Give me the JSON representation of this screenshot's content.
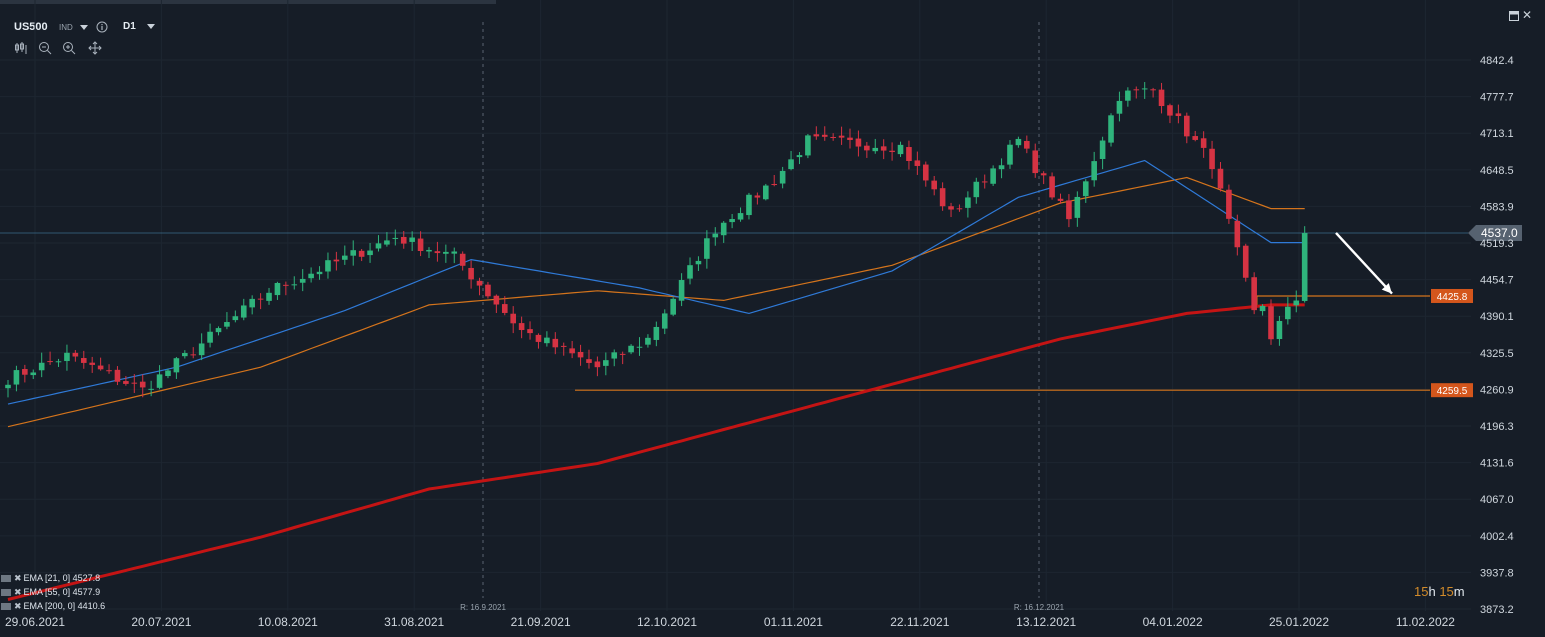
{
  "header": {
    "symbol": "US500",
    "instrument_type": "IND",
    "info_icon": "info-icon",
    "timeframe": "D1",
    "tools": [
      "candlestick-settings-icon",
      "zoom-out-icon",
      "zoom-in-icon",
      "crosshair-move-icon"
    ]
  },
  "window": {
    "maximize_icon": "maximize-icon",
    "close_label": "✕"
  },
  "indicators": [
    {
      "label": "EMA [21, 0] 4527.8",
      "color": "#2f7ad8"
    },
    {
      "label": "EMA [55, 0] 4577.9",
      "color": "#d4741c"
    },
    {
      "label": "EMA [200, 0] 4410.6",
      "color": "#c41414"
    }
  ],
  "countdown": {
    "hours": "15",
    "h": "h",
    "minutes": "15",
    "m": "m"
  },
  "chart_data": {
    "type": "candlestick",
    "symbol": "US500",
    "timeframe": "D1",
    "y_ticks": [
      4842.4,
      4777.7,
      4713.1,
      4648.5,
      4583.9,
      4519.3,
      4454.7,
      4390.1,
      4325.5,
      4260.9,
      4196.3,
      4131.6,
      4067.0,
      4002.4,
      3937.8,
      3873.2
    ],
    "ylim": [
      3873.2,
      4842.4
    ],
    "x_ticks": [
      "29.06.2021",
      "20.07.2021",
      "10.08.2021",
      "31.08.2021",
      "21.09.2021",
      "12.10.2021",
      "01.11.2021",
      "22.11.2021",
      "13.12.2021",
      "04.01.2022",
      "25.01.2022",
      "11.02.2022"
    ],
    "rollover_markers": [
      "R: 16.9.2021",
      "R: 16.12.2021"
    ],
    "current_price": 4537.0,
    "horizontal_levels": [
      {
        "label": "4425.8",
        "value": 4425.8,
        "color": "#d4741c"
      },
      {
        "label": "4259.5",
        "value": 4259.5,
        "color": "#d4741c"
      }
    ],
    "arrow": {
      "from_date": "26.01.2022",
      "from_value": 4537,
      "to_date": "07.02.2022",
      "to_value": 4430,
      "color": "#ffffff"
    },
    "ema_series": [
      {
        "name": "EMA [21, 0]",
        "color": "#2f7ad8"
      },
      {
        "name": "EMA [55, 0]",
        "color": "#d4741c"
      },
      {
        "name": "EMA [200, 0]",
        "color": "#c41414"
      }
    ],
    "candle_anchors": [
      {
        "date": "29.06.2021",
        "close": 4280
      },
      {
        "date": "08.07.2021",
        "close": 4320
      },
      {
        "date": "20.07.2021",
        "close": 4260
      },
      {
        "date": "10.08.2021",
        "close": 4435
      },
      {
        "date": "31.08.2021",
        "close": 4530
      },
      {
        "date": "09.09.2021",
        "close": 4495
      },
      {
        "date": "21.09.2021",
        "close": 4365
      },
      {
        "date": "04.10.2021",
        "close": 4300
      },
      {
        "date": "12.10.2021",
        "close": 4350
      },
      {
        "date": "21.10.2021",
        "close": 4545
      },
      {
        "date": "01.11.2021",
        "close": 4630
      },
      {
        "date": "05.11.2021",
        "close": 4700
      },
      {
        "date": "22.11.2021",
        "close": 4690
      },
      {
        "date": "30.11.2021",
        "close": 4570
      },
      {
        "date": "10.12.2021",
        "close": 4700
      },
      {
        "date": "20.12.2021",
        "close": 4560
      },
      {
        "date": "29.12.2021",
        "close": 4780
      },
      {
        "date": "04.01.2022",
        "close": 4790
      },
      {
        "date": "13.01.2022",
        "close": 4660
      },
      {
        "date": "21.01.2022",
        "close": 4395
      },
      {
        "date": "24.01.2022",
        "close": 4410
      },
      {
        "date": "25.01.2022",
        "close": 4355
      },
      {
        "date": "28.01.2022",
        "close": 4420
      },
      {
        "date": "31.01.2022",
        "close": 4510
      },
      {
        "date": "02.02.2022",
        "close": 4550
      },
      {
        "date": "03.02.2022",
        "close": 4537
      }
    ],
    "candle_count": 155,
    "ema21_anchors": [
      [
        0,
        4235
      ],
      [
        20,
        4300
      ],
      [
        40,
        4400
      ],
      [
        55,
        4490
      ],
      [
        75,
        4440
      ],
      [
        88,
        4395
      ],
      [
        105,
        4470
      ],
      [
        120,
        4600
      ],
      [
        135,
        4665
      ],
      [
        150,
        4520
      ]
    ],
    "ema55_anchors": [
      [
        0,
        4195
      ],
      [
        30,
        4300
      ],
      [
        50,
        4410
      ],
      [
        70,
        4435
      ],
      [
        85,
        4418
      ],
      [
        105,
        4480
      ],
      [
        125,
        4590
      ],
      [
        140,
        4635
      ],
      [
        150,
        4580
      ]
    ],
    "ema200_anchors": [
      [
        0,
        3890
      ],
      [
        30,
        4000
      ],
      [
        50,
        4085
      ],
      [
        70,
        4130
      ],
      [
        90,
        4210
      ],
      [
        110,
        4290
      ],
      [
        125,
        4350
      ],
      [
        140,
        4395
      ],
      [
        150,
        4410
      ]
    ]
  }
}
